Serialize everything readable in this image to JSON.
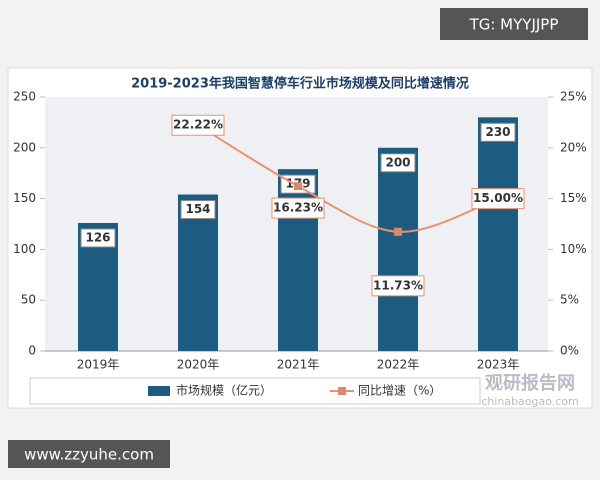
{
  "chart_data": {
    "type": "bar-line",
    "title": "2019-2023年我国智慧停车行业市场规模及同比增速情况",
    "categories": [
      "2019年",
      "2020年",
      "2021年",
      "2022年",
      "2023年"
    ],
    "series": [
      {
        "name": "市场规模（亿元）",
        "type": "bar",
        "color": "#1d5c80",
        "values": [
          126,
          154,
          179,
          200,
          230
        ]
      },
      {
        "name": "同比增速（%）",
        "type": "line",
        "axis": "y2",
        "color": "#e8916e",
        "values": [
          null,
          22.22,
          16.23,
          11.73,
          15.0
        ],
        "value_labels": [
          null,
          "22.22%",
          "16.23%",
          "11.73%",
          "15.00%"
        ]
      }
    ],
    "ylim": [
      0,
      250
    ],
    "yticks": [
      0,
      50,
      100,
      150,
      200,
      250
    ],
    "y2lim": [
      0,
      25
    ],
    "y2ticks": [
      {
        "value": 0,
        "label": "0%"
      },
      {
        "value": 5,
        "label": "5%"
      },
      {
        "value": 10,
        "label": "10%"
      },
      {
        "value": 15,
        "label": "15%"
      },
      {
        "value": 20,
        "label": "20%"
      },
      {
        "value": 25,
        "label": "25%"
      }
    ],
    "legend": "bottom"
  },
  "watermarks": [
    "TG: MYYJJPP",
    "www.zzyuhe.com",
    "观研报告网",
    "chinabaogao.com"
  ]
}
